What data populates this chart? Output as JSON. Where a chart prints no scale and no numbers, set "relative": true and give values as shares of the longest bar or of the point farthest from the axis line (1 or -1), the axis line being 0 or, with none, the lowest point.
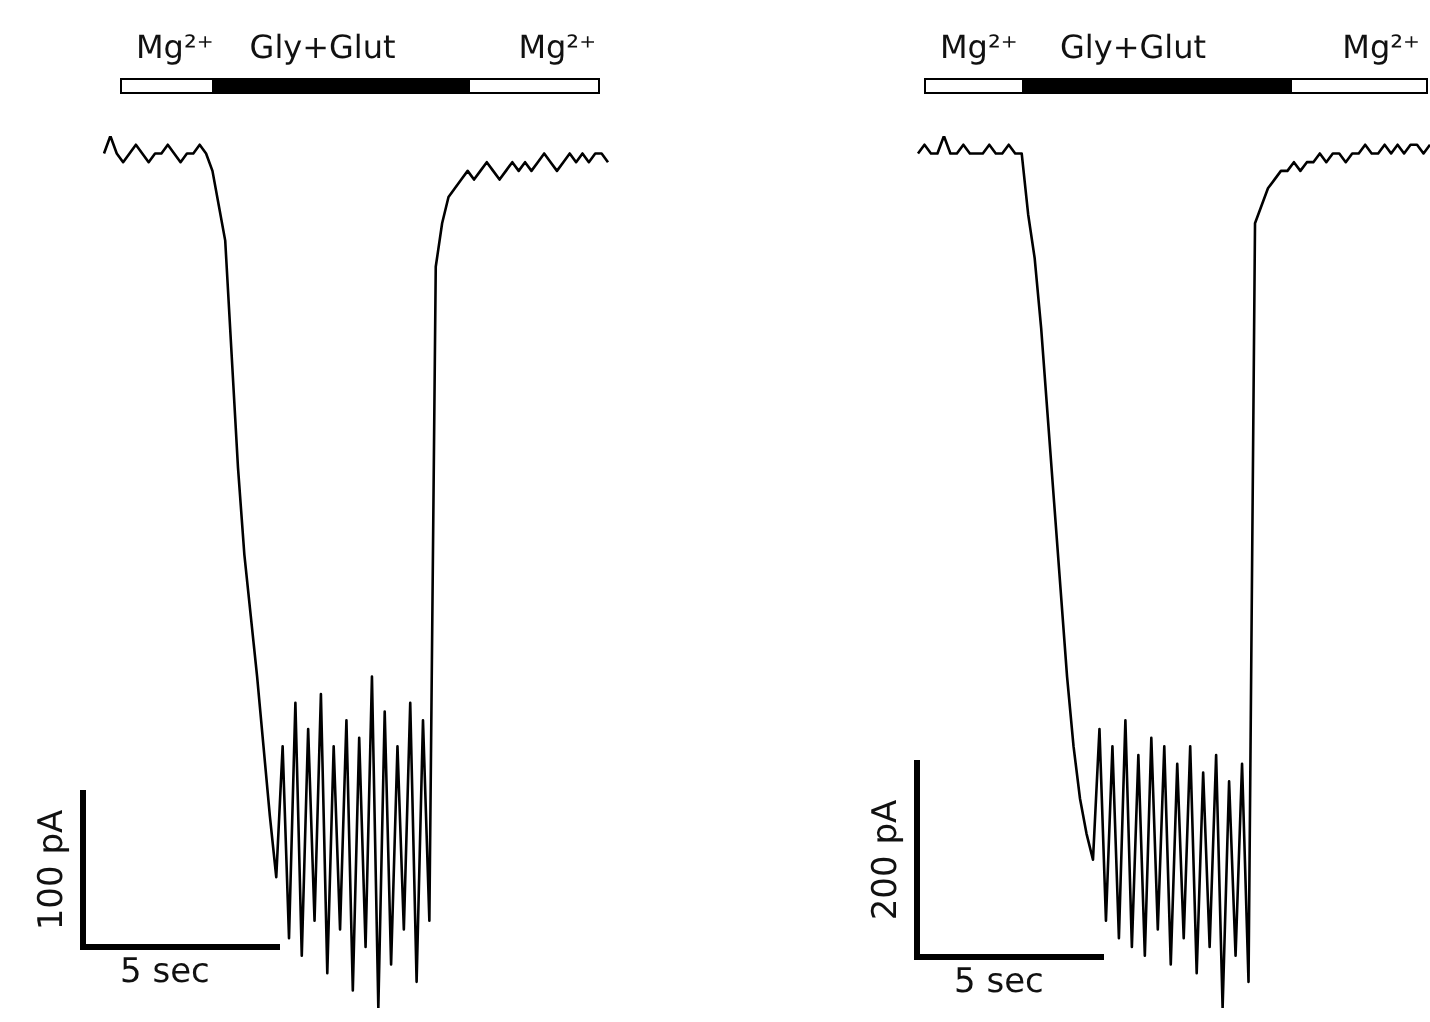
{
  "chart_data": [
    {
      "type": "line",
      "relative": true,
      "marker": "none",
      "annotations": [
        "Mg²⁺",
        "Gly+Glut",
        "Mg²⁺",
        "100 pA",
        "5 sec"
      ],
      "categories": [
        null,
        null,
        null,
        null,
        null,
        null,
        null,
        null,
        null,
        null,
        null,
        null,
        null,
        null,
        null,
        null,
        null,
        null,
        null,
        null,
        null,
        null,
        null,
        null,
        null,
        null,
        null,
        null,
        null,
        null,
        null,
        null,
        null,
        null,
        null,
        null,
        null,
        null,
        null,
        null,
        null,
        null,
        null,
        null,
        null,
        null,
        null,
        null,
        null,
        null,
        null,
        null,
        null,
        null,
        null,
        null,
        null,
        null,
        null,
        null,
        null,
        null,
        null,
        null,
        null,
        null,
        null,
        null,
        null,
        null,
        null,
        null,
        null,
        null,
        null,
        null,
        null,
        null,
        null,
        null
      ],
      "series": [
        {
          "color": "#000000",
          "values": [
            0.98,
            1.0,
            0.98,
            0.97,
            0.98,
            0.99,
            0.98,
            0.97,
            0.98,
            0.98,
            0.99,
            0.98,
            0.97,
            0.98,
            0.98,
            0.99,
            0.98,
            0.96,
            0.92,
            0.88,
            0.75,
            0.62,
            0.52,
            0.45,
            0.38,
            0.3,
            0.22,
            0.15,
            0.3,
            0.08,
            0.35,
            0.06,
            0.32,
            0.1,
            0.36,
            0.04,
            0.3,
            0.09,
            0.33,
            0.02,
            0.31,
            0.07,
            0.38,
            0.0,
            0.34,
            0.05,
            0.3,
            0.09,
            0.35,
            0.03,
            0.33,
            0.1,
            0.85,
            0.9,
            0.93,
            0.94,
            0.95,
            0.96,
            0.95,
            0.96,
            0.97,
            0.96,
            0.95,
            0.96,
            0.97,
            0.96,
            0.97,
            0.96,
            0.97,
            0.98,
            0.97,
            0.96,
            0.97,
            0.98,
            0.97,
            0.98,
            0.97,
            0.98,
            0.98,
            0.97
          ]
        }
      ]
    },
    {
      "type": "line",
      "relative": true,
      "marker": "none",
      "annotations": [
        "Mg²⁺",
        "Gly+Glut",
        "Mg²⁺",
        "200 pA",
        "5 sec"
      ],
      "categories": [
        null,
        null,
        null,
        null,
        null,
        null,
        null,
        null,
        null,
        null,
        null,
        null,
        null,
        null,
        null,
        null,
        null,
        null,
        null,
        null,
        null,
        null,
        null,
        null,
        null,
        null,
        null,
        null,
        null,
        null,
        null,
        null,
        null,
        null,
        null,
        null,
        null,
        null,
        null,
        null,
        null,
        null,
        null,
        null,
        null,
        null,
        null,
        null,
        null,
        null,
        null,
        null,
        null,
        null,
        null,
        null,
        null,
        null,
        null,
        null,
        null,
        null,
        null,
        null,
        null,
        null,
        null,
        null,
        null,
        null,
        null,
        null,
        null,
        null,
        null,
        null,
        null,
        null,
        null,
        null
      ],
      "series": [
        {
          "color": "#000000",
          "values": [
            0.98,
            0.99,
            0.98,
            0.98,
            1.0,
            0.98,
            0.98,
            0.99,
            0.98,
            0.98,
            0.98,
            0.99,
            0.98,
            0.98,
            0.99,
            0.98,
            0.98,
            0.91,
            0.86,
            0.78,
            0.68,
            0.58,
            0.48,
            0.38,
            0.3,
            0.24,
            0.2,
            0.17,
            0.32,
            0.1,
            0.3,
            0.08,
            0.33,
            0.07,
            0.29,
            0.06,
            0.31,
            0.09,
            0.3,
            0.05,
            0.28,
            0.08,
            0.3,
            0.04,
            0.27,
            0.07,
            0.29,
            0.0,
            0.26,
            0.06,
            0.28,
            0.03,
            0.9,
            0.92,
            0.94,
            0.95,
            0.96,
            0.96,
            0.97,
            0.96,
            0.97,
            0.97,
            0.98,
            0.97,
            0.98,
            0.98,
            0.97,
            0.98,
            0.98,
            0.99,
            0.98,
            0.98,
            0.99,
            0.98,
            0.99,
            0.98,
            0.99,
            0.99,
            0.98,
            0.99
          ]
        }
      ]
    }
  ]
}
